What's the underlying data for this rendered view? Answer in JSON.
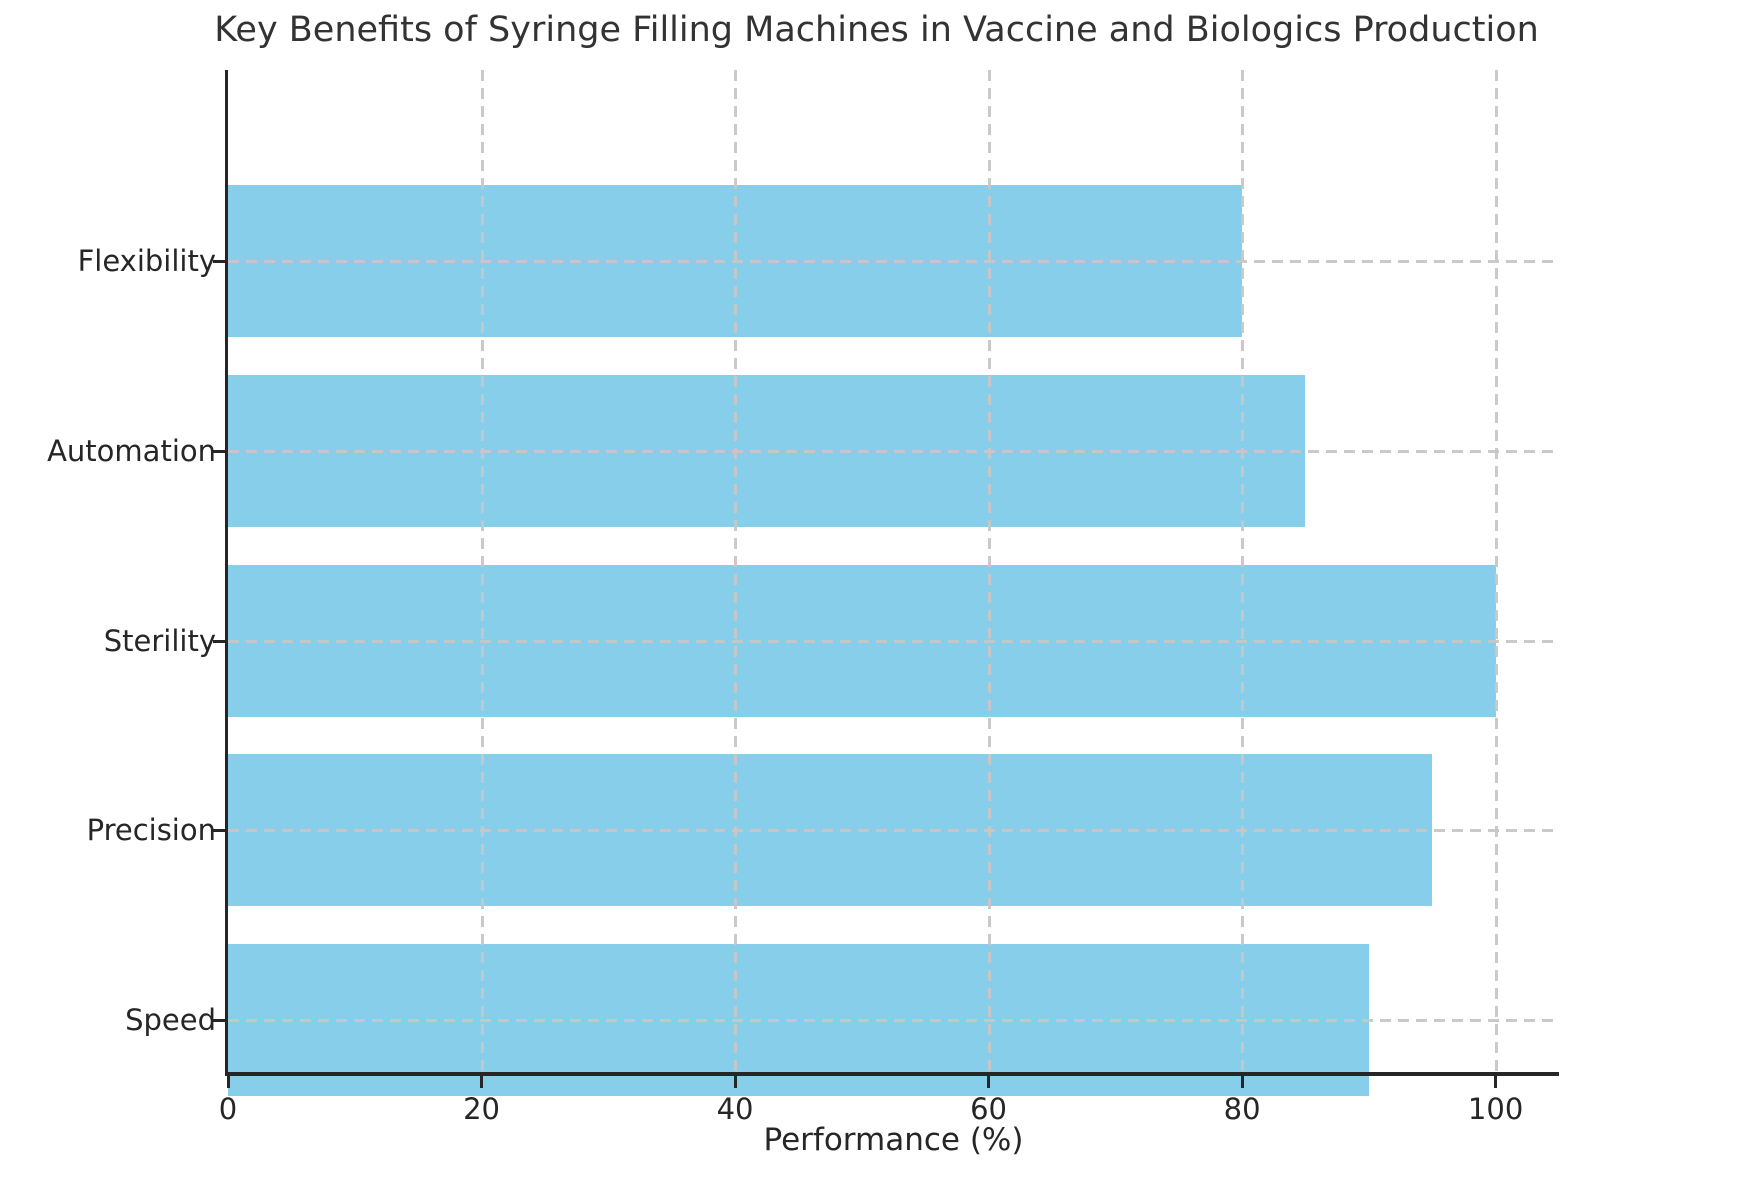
{
  "chart_data": {
    "type": "bar",
    "orientation": "horizontal",
    "title": "Key Benefits of Syringe Filling Machines in Vaccine and Biologics Production",
    "categories": [
      "Flexibility",
      "Automation",
      "Sterility",
      "Precision",
      "Speed"
    ],
    "values": [
      80,
      85,
      100,
      95,
      90
    ],
    "xlabel": "Performance (%)",
    "ylabel": "",
    "xlim": [
      0,
      105
    ],
    "xticks": [
      0,
      20,
      40,
      60,
      80,
      100
    ],
    "grid": "dashed gridlines on both axes, drawn over bars",
    "legend_position": "none",
    "bar_color": "#87CEEB"
  },
  "colors": {
    "bar": "#87CEEB",
    "grid": "rgba(199,199,199,0.95)",
    "axis": "#262626",
    "title_text": "#333333",
    "background": "#ffffff"
  }
}
